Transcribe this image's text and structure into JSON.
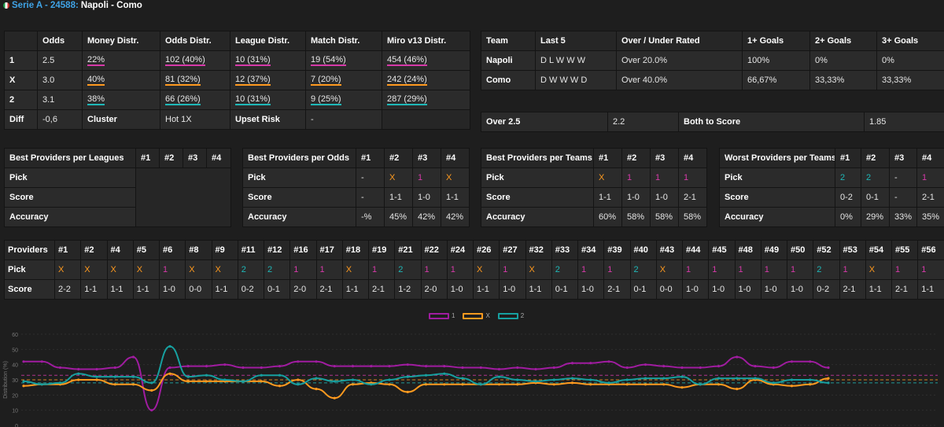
{
  "header": {
    "league": "Serie A - 24588:",
    "match": "Napoli - Como"
  },
  "odds_table": {
    "headers": [
      "",
      "Odds",
      "Money Distr.",
      "Odds Distr.",
      "League Distr.",
      "Match Distr.",
      "Miro v13 Distr."
    ],
    "rows": [
      {
        "label": "1",
        "odds": "2.5",
        "money": "22%",
        "odds_distr": "102 (40%)",
        "league": "10 (31%)",
        "match": "19 (54%)",
        "miro": "454 (46%)"
      },
      {
        "label": "X",
        "odds": "3.0",
        "money": "40%",
        "odds_distr": "81 (32%)",
        "league": "12 (37%)",
        "match": "7 (20%)",
        "miro": "242 (24%)"
      },
      {
        "label": "2",
        "odds": "3.1",
        "money": "38%",
        "odds_distr": "66 (26%)",
        "league": "10 (31%)",
        "match": "9 (25%)",
        "miro": "287 (29%)"
      }
    ],
    "diff": {
      "label": "Diff",
      "value": "-0,6",
      "cluster_label": "Cluster",
      "cluster_value": "Hot 1X",
      "upset_label": "Upset Risk",
      "upset_value": "-"
    }
  },
  "team_table": {
    "headers": [
      "Team",
      "Last 5",
      "Over / Under Rated",
      "1+ Goals",
      "2+ Goals",
      "3+ Goals"
    ],
    "rows": [
      {
        "team": "Napoli",
        "last5": "D L W W W",
        "rated": "Over 20.0%",
        "g1": "100%",
        "g2": "0%",
        "g3": "0%"
      },
      {
        "team": "Como",
        "last5": "D W W W D",
        "rated": "Over 40.0%",
        "g1": "66,67%",
        "g2": "33,33%",
        "g3": "33,33%"
      }
    ]
  },
  "over_table": {
    "over_label": "Over 2.5",
    "over_value": "2.2",
    "bts_label": "Both to Score",
    "bts_value": "1.85"
  },
  "best_leagues": {
    "headers": [
      "Best Providers per Leagues",
      "#1",
      "#2",
      "#3",
      "#4"
    ],
    "rows": [
      "Pick",
      "Score",
      "Accuracy"
    ]
  },
  "best_odds": {
    "headers": [
      "Best Providers per Odds",
      "#1",
      "#2",
      "#3",
      "#4"
    ],
    "pick": [
      "-",
      "X",
      "1",
      "X"
    ],
    "score": [
      "-",
      "1-1",
      "1-0",
      "1-1"
    ],
    "accuracy": [
      "-%",
      "45%",
      "42%",
      "42%"
    ]
  },
  "best_teams": {
    "headers": [
      "Best Providers per Teams",
      "#1",
      "#2",
      "#3",
      "#4"
    ],
    "pick": [
      "X",
      "1",
      "1",
      "1"
    ],
    "score": [
      "1-1",
      "1-0",
      "1-0",
      "2-1"
    ],
    "accuracy": [
      "60%",
      "58%",
      "58%",
      "58%"
    ]
  },
  "worst_teams": {
    "headers": [
      "Worst Providers per Teams",
      "#1",
      "#2",
      "#3",
      "#4"
    ],
    "pick": [
      "2",
      "2",
      "-",
      "1"
    ],
    "score": [
      "0-2",
      "0-1",
      "-",
      "2-1"
    ],
    "accuracy": [
      "0%",
      "29%",
      "33%",
      "35%"
    ]
  },
  "row_labels": {
    "pick": "Pick",
    "score": "Score",
    "accuracy": "Accuracy"
  },
  "providers": {
    "title": "Providers",
    "ids": [
      "#1",
      "#2",
      "#4",
      "#5",
      "#6",
      "#8",
      "#9",
      "#11",
      "#12",
      "#16",
      "#17",
      "#18",
      "#19",
      "#21",
      "#22",
      "#24",
      "#26",
      "#27",
      "#32",
      "#33",
      "#34",
      "#39",
      "#40",
      "#43",
      "#44",
      "#45",
      "#48",
      "#49",
      "#50",
      "#52",
      "#53",
      "#54",
      "#55",
      "#56"
    ],
    "picks": [
      "X",
      "X",
      "X",
      "X",
      "1",
      "X",
      "X",
      "2",
      "2",
      "1",
      "1",
      "X",
      "1",
      "2",
      "1",
      "1",
      "X",
      "1",
      "X",
      "2",
      "1",
      "1",
      "2",
      "X",
      "1",
      "1",
      "1",
      "1",
      "1",
      "2",
      "1",
      "X",
      "1",
      "1"
    ],
    "scores": [
      "2-2",
      "1-1",
      "1-1",
      "1-1",
      "1-0",
      "0-0",
      "1-1",
      "0-2",
      "0-1",
      "2-0",
      "2-1",
      "1-1",
      "2-1",
      "1-2",
      "2-0",
      "1-0",
      "1-1",
      "1-0",
      "1-1",
      "0-1",
      "1-0",
      "2-1",
      "0-1",
      "0-0",
      "1-0",
      "1-0",
      "1-0",
      "1-0",
      "1-0",
      "0-2",
      "2-1",
      "1-1",
      "2-1",
      "1-1"
    ]
  },
  "chart_data": {
    "type": "line",
    "ylabel": "Distribution (%)",
    "ylim": [
      0,
      60
    ],
    "yticks": [
      0,
      10,
      20,
      30,
      40,
      50,
      60
    ],
    "grid": true,
    "legend_position": "top-center",
    "series": [
      {
        "name": "1",
        "color": "#a01ca0",
        "values": [
          42,
          42,
          38,
          37,
          37,
          38,
          45,
          10,
          38,
          39,
          39,
          40,
          38,
          38,
          39,
          42,
          42,
          39,
          39,
          39,
          39,
          40,
          39,
          39,
          38,
          38,
          37,
          38,
          37,
          38,
          41,
          41,
          42,
          38,
          40,
          39,
          38,
          38,
          39,
          45,
          39,
          38,
          42,
          42,
          38
        ]
      },
      {
        "name": "X",
        "color": "#ff9a1f",
        "values": [
          26,
          27,
          27,
          30,
          30,
          27,
          27,
          23,
          34,
          29,
          29,
          29,
          29,
          29,
          26,
          30,
          24,
          18,
          27,
          28,
          27,
          22,
          27,
          27,
          27,
          27,
          27,
          27,
          28,
          27,
          28,
          27,
          27,
          27,
          27,
          27,
          25,
          27,
          27,
          24,
          30,
          27,
          26,
          27,
          31
        ]
      },
      {
        "name": "2",
        "color": "#17a0a0",
        "values": [
          29,
          27,
          28,
          34,
          32,
          32,
          32,
          28,
          52,
          32,
          33,
          30,
          29,
          33,
          33,
          27,
          31,
          29,
          30,
          27,
          30,
          32,
          33,
          34,
          31,
          27,
          32,
          30,
          29,
          30,
          31,
          30,
          28,
          30,
          31,
          31,
          32,
          27,
          31,
          31,
          31,
          28,
          30,
          30,
          28
        ]
      }
    ],
    "ref_lines": [
      {
        "value": 33,
        "color": "#d63aa9"
      },
      {
        "value": 30,
        "color": "#ff9a1f"
      },
      {
        "value": 28,
        "color": "#1fb8b8"
      }
    ]
  }
}
